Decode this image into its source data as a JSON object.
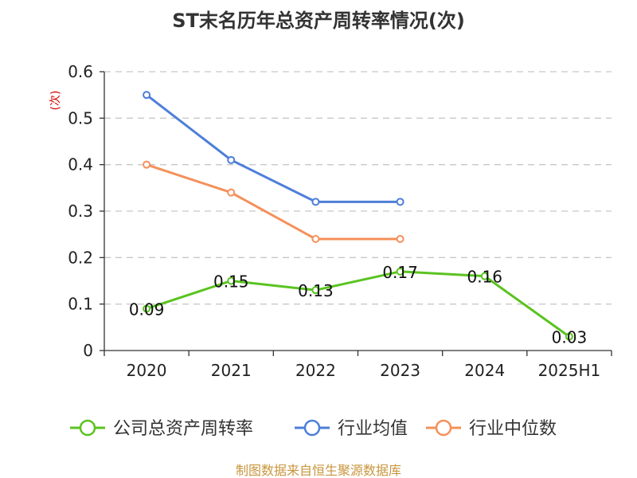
{
  "chart_data": {
    "type": "line",
    "title": "ST末名历年总资产周转率情况(次)",
    "ylabel": "(次)",
    "xlabel": "",
    "categories": [
      "2020",
      "2021",
      "2022",
      "2023",
      "2024",
      "2025H1"
    ],
    "ylim": [
      0,
      0.6
    ],
    "yticks": [
      "0",
      "0.1",
      "0.2",
      "0.3",
      "0.4",
      "0.5",
      "0.6"
    ],
    "grid": true,
    "legend_position": "bottom",
    "series": [
      {
        "name": "公司总资产周转率",
        "color": "#5ac320",
        "values": [
          0.09,
          0.15,
          0.13,
          0.17,
          0.16,
          0.03
        ],
        "labels": [
          "0.09",
          "0.15",
          "0.13",
          "0.17",
          "0.16",
          "0.03"
        ]
      },
      {
        "name": "行业均值",
        "color": "#4e7fd8",
        "values": [
          0.55,
          0.41,
          0.32,
          0.32,
          null,
          null
        ]
      },
      {
        "name": "行业中位数",
        "color": "#f5905a",
        "values": [
          0.4,
          0.34,
          0.24,
          0.24,
          null,
          null
        ]
      }
    ]
  },
  "source": "制图数据来自恒生聚源数据库"
}
